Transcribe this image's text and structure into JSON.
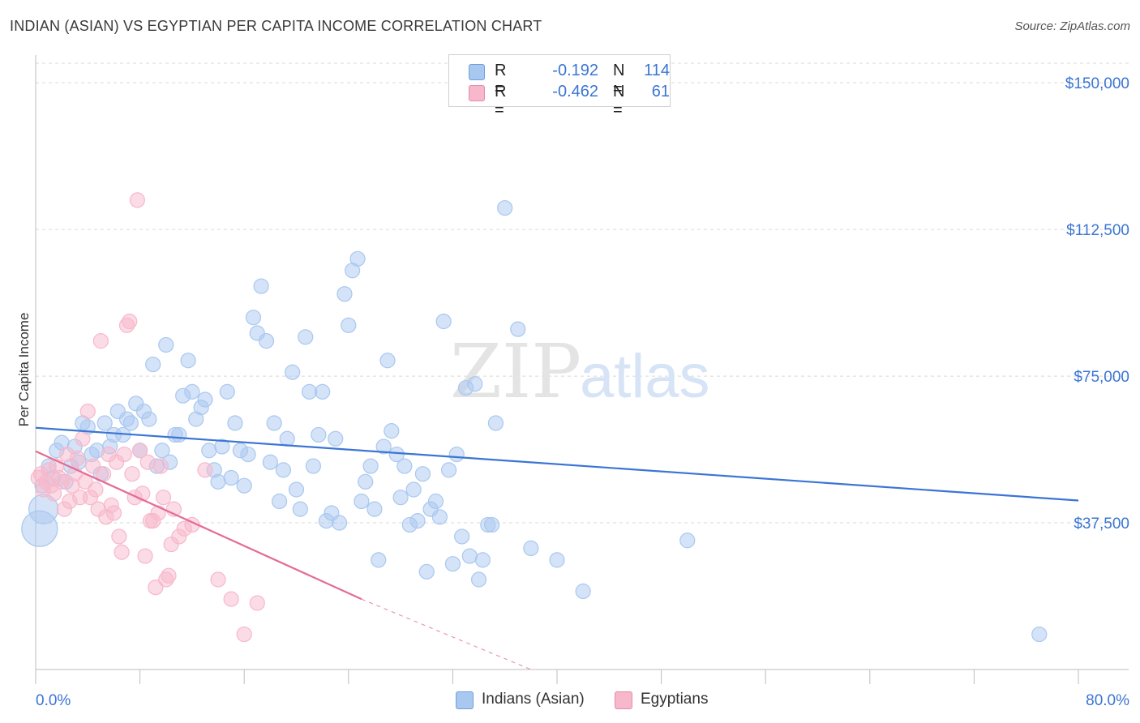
{
  "title": "INDIAN (ASIAN) VS EGYPTIAN PER CAPITA INCOME CORRELATION CHART",
  "source": "Source: ZipAtlas.com",
  "watermark": {
    "zip": "ZIP",
    "atlas": "atlas"
  },
  "legend": {
    "rows": [
      {
        "r_label": "R =",
        "r_value": "-0.192",
        "n_label": "N =",
        "n_value": "114",
        "color": "#a9c8f0"
      },
      {
        "r_label": "R =",
        "r_value": "-0.462",
        "n_label": "N =",
        "n_value": "61",
        "color": "#f7b8cb"
      }
    ]
  },
  "bottom_legend": [
    {
      "label": "Indians (Asian)",
      "color": "#a9c8f0"
    },
    {
      "label": "Egyptians",
      "color": "#f7b8cb"
    }
  ],
  "chart_data": {
    "type": "scatter",
    "title": "INDIAN (ASIAN) VS EGYPTIAN PER CAPITA INCOME CORRELATION CHART",
    "xlabel": "",
    "ylabel": "Per Capita Income",
    "xlim": [
      0,
      80
    ],
    "ylim": [
      0,
      155000
    ],
    "x_tick_labels": [
      "0.0%",
      "80.0%"
    ],
    "y_ticks": [
      37500,
      75000,
      112500,
      150000
    ],
    "y_tick_labels": [
      "$37,500",
      "$75,000",
      "$112,500",
      "$150,000"
    ],
    "grid": true,
    "legend_position": "top-center",
    "series": [
      {
        "name": "Indians (Asian)",
        "color": "#3b75d4",
        "fill": "#a9c8f0",
        "trend": {
          "x0": 0,
          "y0": 61800,
          "x1": 80,
          "y1": 43200
        },
        "points": [
          [
            0.3,
            36000
          ],
          [
            0.6,
            41000
          ],
          [
            0.5,
            47000
          ],
          [
            1.0,
            52000
          ],
          [
            1.3,
            49000
          ],
          [
            1.6,
            56000
          ],
          [
            2.0,
            58000
          ],
          [
            2.3,
            48000
          ],
          [
            2.7,
            52000
          ],
          [
            3.0,
            57000
          ],
          [
            3.3,
            53000
          ],
          [
            3.6,
            63000
          ],
          [
            4.0,
            62000
          ],
          [
            4.3,
            55000
          ],
          [
            4.7,
            56000
          ],
          [
            5.0,
            50000
          ],
          [
            5.3,
            63000
          ],
          [
            5.7,
            57000
          ],
          [
            6.0,
            60000
          ],
          [
            6.3,
            66000
          ],
          [
            6.7,
            60000
          ],
          [
            7.0,
            64000
          ],
          [
            7.3,
            63000
          ],
          [
            7.7,
            68000
          ],
          [
            8.0,
            56000
          ],
          [
            8.3,
            66000
          ],
          [
            8.7,
            64000
          ],
          [
            9.0,
            78000
          ],
          [
            9.3,
            52000
          ],
          [
            9.7,
            56000
          ],
          [
            10.0,
            83000
          ],
          [
            10.3,
            53000
          ],
          [
            10.7,
            60000
          ],
          [
            11.0,
            60000
          ],
          [
            11.3,
            70000
          ],
          [
            11.7,
            79000
          ],
          [
            12.0,
            71000
          ],
          [
            12.3,
            64000
          ],
          [
            12.7,
            67000
          ],
          [
            13.0,
            69000
          ],
          [
            13.3,
            56000
          ],
          [
            13.7,
            51000
          ],
          [
            14.0,
            48000
          ],
          [
            14.3,
            57000
          ],
          [
            14.7,
            71000
          ],
          [
            15.0,
            49000
          ],
          [
            15.3,
            63000
          ],
          [
            15.7,
            56000
          ],
          [
            16.0,
            47000
          ],
          [
            16.3,
            55000
          ],
          [
            16.7,
            90000
          ],
          [
            17.0,
            86000
          ],
          [
            17.3,
            98000
          ],
          [
            17.7,
            84000
          ],
          [
            18.0,
            53000
          ],
          [
            18.3,
            63000
          ],
          [
            18.7,
            43000
          ],
          [
            19.0,
            51000
          ],
          [
            19.3,
            59000
          ],
          [
            19.7,
            76000
          ],
          [
            20.0,
            46000
          ],
          [
            20.3,
            41000
          ],
          [
            20.7,
            85000
          ],
          [
            21.0,
            71000
          ],
          [
            21.3,
            52000
          ],
          [
            21.7,
            60000
          ],
          [
            22.0,
            71000
          ],
          [
            22.3,
            38000
          ],
          [
            22.7,
            40000
          ],
          [
            23.0,
            59000
          ],
          [
            23.3,
            37500
          ],
          [
            23.7,
            96000
          ],
          [
            24.0,
            88000
          ],
          [
            24.3,
            102000
          ],
          [
            24.7,
            105000
          ],
          [
            25.0,
            43000
          ],
          [
            25.3,
            48000
          ],
          [
            25.7,
            52000
          ],
          [
            26.0,
            41000
          ],
          [
            26.3,
            28000
          ],
          [
            26.7,
            57000
          ],
          [
            27.0,
            79000
          ],
          [
            27.3,
            61000
          ],
          [
            27.7,
            55000
          ],
          [
            28.0,
            44000
          ],
          [
            28.3,
            52000
          ],
          [
            28.7,
            37000
          ],
          [
            29.0,
            46000
          ],
          [
            29.3,
            38000
          ],
          [
            29.7,
            50000
          ],
          [
            30.0,
            25000
          ],
          [
            30.3,
            41000
          ],
          [
            30.7,
            43000
          ],
          [
            31.0,
            39000
          ],
          [
            31.3,
            89000
          ],
          [
            31.7,
            51000
          ],
          [
            32.0,
            27000
          ],
          [
            32.3,
            55000
          ],
          [
            32.7,
            34000
          ],
          [
            33.0,
            72000
          ],
          [
            33.3,
            29000
          ],
          [
            33.7,
            73000
          ],
          [
            34.0,
            23000
          ],
          [
            34.3,
            28000
          ],
          [
            34.7,
            37000
          ],
          [
            35.0,
            37000
          ],
          [
            35.3,
            63000
          ],
          [
            36.0,
            118000
          ],
          [
            37.0,
            87000
          ],
          [
            38.0,
            31000
          ],
          [
            40.0,
            28000
          ],
          [
            42.0,
            20000
          ],
          [
            50.0,
            33000
          ],
          [
            77.0,
            9000
          ]
        ],
        "sizes": {
          "0.3": 22,
          "0.6": 18
        }
      },
      {
        "name": "Egyptians",
        "color": "#e56b94",
        "fill": "#f7b8cb",
        "trend": {
          "x0": 0,
          "y0": 55800,
          "x1": 25,
          "y1": 18000
        },
        "trend_dashed_to": {
          "x": 38,
          "y": 0
        },
        "points": [
          [
            0.2,
            49000
          ],
          [
            0.4,
            50000
          ],
          [
            0.6,
            46000
          ],
          [
            0.8,
            48000
          ],
          [
            1.0,
            51000
          ],
          [
            1.2,
            47000
          ],
          [
            1.4,
            45000
          ],
          [
            1.6,
            52000
          ],
          [
            1.8,
            49000
          ],
          [
            2.0,
            48000
          ],
          [
            2.2,
            41000
          ],
          [
            2.4,
            55000
          ],
          [
            2.6,
            43000
          ],
          [
            2.8,
            47000
          ],
          [
            3.0,
            50000
          ],
          [
            3.2,
            54000
          ],
          [
            3.4,
            44000
          ],
          [
            3.6,
            59000
          ],
          [
            3.8,
            48000
          ],
          [
            4.0,
            66000
          ],
          [
            4.2,
            44000
          ],
          [
            4.4,
            52000
          ],
          [
            4.6,
            46000
          ],
          [
            4.8,
            41000
          ],
          [
            5.0,
            84000
          ],
          [
            5.2,
            50000
          ],
          [
            5.4,
            39000
          ],
          [
            5.6,
            55000
          ],
          [
            5.8,
            42000
          ],
          [
            6.0,
            40000
          ],
          [
            6.2,
            53000
          ],
          [
            6.4,
            34000
          ],
          [
            6.6,
            30000
          ],
          [
            6.8,
            55000
          ],
          [
            7.0,
            88000
          ],
          [
            7.2,
            89000
          ],
          [
            7.4,
            50000
          ],
          [
            7.6,
            44000
          ],
          [
            7.8,
            120000
          ],
          [
            8.0,
            56000
          ],
          [
            8.2,
            45000
          ],
          [
            8.4,
            29000
          ],
          [
            8.6,
            53000
          ],
          [
            8.8,
            38000
          ],
          [
            9.0,
            38000
          ],
          [
            9.2,
            21000
          ],
          [
            9.4,
            40000
          ],
          [
            9.6,
            52000
          ],
          [
            9.8,
            44000
          ],
          [
            10.0,
            23000
          ],
          [
            10.2,
            24000
          ],
          [
            10.4,
            32000
          ],
          [
            10.6,
            41000
          ],
          [
            11.0,
            34000
          ],
          [
            11.4,
            36000
          ],
          [
            12.0,
            37000
          ],
          [
            13.0,
            51000
          ],
          [
            14.0,
            23000
          ],
          [
            15.0,
            18000
          ],
          [
            16.0,
            9000
          ],
          [
            17.0,
            17000
          ]
        ]
      }
    ]
  }
}
